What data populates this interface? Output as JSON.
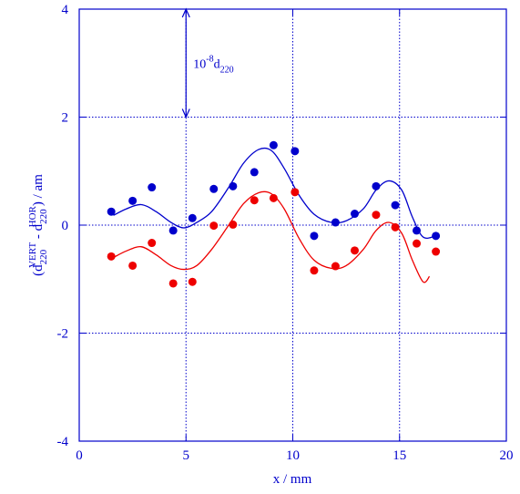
{
  "chart_data": {
    "type": "scatter",
    "xlabel": "x / mm",
    "ylabel": {
      "open": "(d",
      "sub1": "220",
      "sup1": "VERT",
      "mid": " - d",
      "sub2": "220",
      "sup2": "HOR",
      "close": ") / am"
    },
    "xlim": [
      0,
      20
    ],
    "ylim": [
      -4,
      4
    ],
    "xticks": [
      0,
      5,
      10,
      15,
      20
    ],
    "yticks": [
      -4,
      -2,
      0,
      2,
      4
    ],
    "x_tick_labels": [
      "0",
      "5",
      "10",
      "15",
      "20"
    ],
    "y_tick_labels": [
      "-4",
      "-2",
      "0",
      "2",
      "4"
    ],
    "grid": true,
    "annotation": {
      "base": "10",
      "exp": "-8",
      "symbol": "d",
      "sub": "220",
      "arrow_x": 5,
      "arrow_y_from": 2,
      "arrow_y_to": 4
    },
    "series": [
      {
        "color": "#0000cc",
        "points": [
          [
            1.5,
            0.25
          ],
          [
            2.5,
            0.45
          ],
          [
            3.4,
            0.7
          ],
          [
            4.4,
            -0.1
          ],
          [
            5.3,
            0.13
          ],
          [
            6.3,
            0.67
          ],
          [
            7.2,
            0.72
          ],
          [
            8.2,
            0.98
          ],
          [
            9.1,
            1.48
          ],
          [
            10.1,
            1.37
          ],
          [
            11.0,
            -0.2
          ],
          [
            12.0,
            0.05
          ],
          [
            12.9,
            0.21
          ],
          [
            13.9,
            0.72
          ],
          [
            14.8,
            0.37
          ],
          [
            15.8,
            -0.1
          ],
          [
            16.7,
            -0.2
          ]
        ],
        "curve": [
          [
            1.6,
            0.18
          ],
          [
            2.2,
            0.3
          ],
          [
            2.9,
            0.38
          ],
          [
            3.6,
            0.25
          ],
          [
            4.3,
            0.05
          ],
          [
            4.9,
            -0.05
          ],
          [
            5.5,
            0.05
          ],
          [
            6.2,
            0.25
          ],
          [
            7.0,
            0.7
          ],
          [
            7.7,
            1.15
          ],
          [
            8.4,
            1.4
          ],
          [
            9.0,
            1.38
          ],
          [
            9.6,
            1.05
          ],
          [
            10.3,
            0.55
          ],
          [
            11.0,
            0.2
          ],
          [
            11.8,
            0.05
          ],
          [
            12.5,
            0.08
          ],
          [
            13.3,
            0.3
          ],
          [
            13.9,
            0.65
          ],
          [
            14.5,
            0.82
          ],
          [
            15.1,
            0.65
          ],
          [
            15.6,
            0.15
          ],
          [
            16.1,
            -0.22
          ],
          [
            16.7,
            -0.2
          ]
        ]
      },
      {
        "color": "#ee0000",
        "points": [
          [
            1.5,
            -0.58
          ],
          [
            2.5,
            -0.75
          ],
          [
            3.4,
            -0.33
          ],
          [
            4.4,
            -1.08
          ],
          [
            5.3,
            -1.05
          ],
          [
            6.3,
            -0.01
          ],
          [
            7.2,
            0.01
          ],
          [
            8.2,
            0.46
          ],
          [
            9.1,
            0.5
          ],
          [
            10.1,
            0.61
          ],
          [
            11.0,
            -0.84
          ],
          [
            12.0,
            -0.76
          ],
          [
            12.9,
            -0.47
          ],
          [
            13.9,
            0.19
          ],
          [
            14.8,
            -0.04
          ],
          [
            15.8,
            -0.34
          ],
          [
            16.7,
            -0.49
          ]
        ],
        "curve": [
          [
            1.6,
            -0.6
          ],
          [
            2.2,
            -0.48
          ],
          [
            2.9,
            -0.4
          ],
          [
            3.6,
            -0.55
          ],
          [
            4.3,
            -0.75
          ],
          [
            4.9,
            -0.82
          ],
          [
            5.5,
            -0.75
          ],
          [
            6.2,
            -0.45
          ],
          [
            7.0,
            0.0
          ],
          [
            7.7,
            0.4
          ],
          [
            8.4,
            0.6
          ],
          [
            9.0,
            0.58
          ],
          [
            9.6,
            0.3
          ],
          [
            10.3,
            -0.25
          ],
          [
            11.0,
            -0.65
          ],
          [
            11.8,
            -0.8
          ],
          [
            12.5,
            -0.75
          ],
          [
            13.3,
            -0.45
          ],
          [
            13.9,
            -0.1
          ],
          [
            14.5,
            0.05
          ],
          [
            15.1,
            -0.15
          ],
          [
            15.6,
            -0.65
          ],
          [
            16.1,
            -1.05
          ],
          [
            16.4,
            -0.95
          ]
        ]
      }
    ]
  }
}
